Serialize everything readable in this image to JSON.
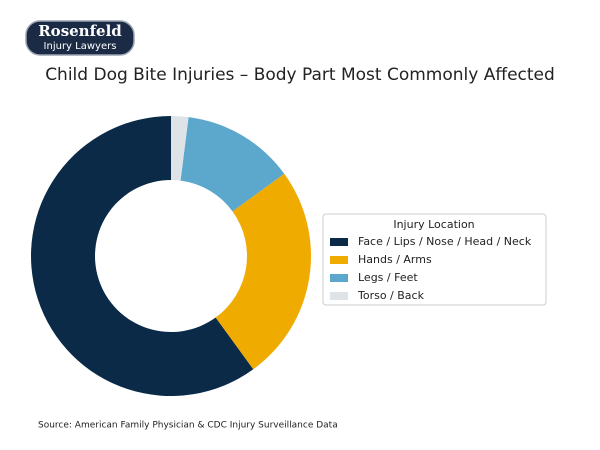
{
  "logo": {
    "name": "Rosenfeld",
    "tagline": "Injury Lawyers"
  },
  "chart_data": {
    "type": "donut",
    "title": "Child Dog Bite Injuries – Body Part Most Commonly Affected",
    "categories": [
      "Face / Lips / Nose / Head / Neck",
      "Hands / Arms",
      "Legs / Feet",
      "Torso / Back"
    ],
    "values": [
      60,
      25,
      13,
      2
    ],
    "colors": [
      "#0b2a47",
      "#f0ab00",
      "#5ba8cc",
      "#dde3e6"
    ],
    "legend_title": "Injury Location",
    "legend_position": "right",
    "source": "Source: American Family Physician & CDC Injury Surveillance Data"
  }
}
